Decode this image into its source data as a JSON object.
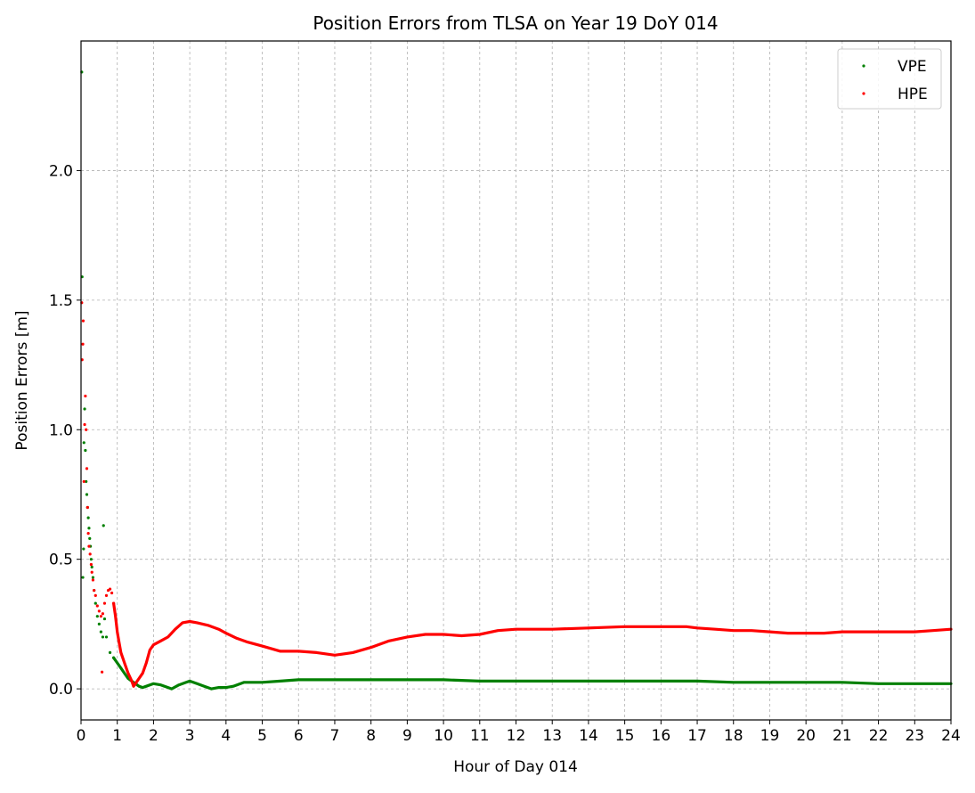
{
  "chart_data": {
    "type": "scatter",
    "title": "Position Errors from TLSA on Year 19 DoY 014",
    "xlabel": "Hour of Day 014",
    "ylabel": "Position Errors [m]",
    "xlim": [
      0,
      24
    ],
    "ylim": [
      -0.12,
      2.5
    ],
    "x_ticks": [
      0,
      1,
      2,
      3,
      4,
      5,
      6,
      7,
      8,
      9,
      10,
      11,
      12,
      13,
      14,
      15,
      16,
      17,
      18,
      19,
      20,
      21,
      22,
      23,
      24
    ],
    "x_tick_labels": [
      "0",
      "1",
      "2",
      "3",
      "4",
      "5",
      "6",
      "7",
      "8",
      "9",
      "10",
      "11",
      "12",
      "13",
      "14",
      "15",
      "16",
      "17",
      "18",
      "19",
      "20",
      "21",
      "22",
      "23",
      "24"
    ],
    "y_ticks": [
      0.0,
      0.5,
      1.0,
      1.5,
      2.0
    ],
    "y_tick_labels": [
      "0.0",
      "0.5",
      "1.0",
      "1.5",
      "2.0"
    ],
    "grid": true,
    "legend_position": "top-right",
    "series": [
      {
        "name": "VPE",
        "color": "#008000",
        "x": [
          0.02,
          0.03,
          0.05,
          0.07,
          0.08,
          0.1,
          0.12,
          0.14,
          0.16,
          0.18,
          0.2,
          0.22,
          0.24,
          0.26,
          0.28,
          0.3,
          0.33,
          0.36,
          0.4,
          0.45,
          0.5,
          0.55,
          0.6,
          0.62,
          0.65,
          0.7,
          0.8,
          0.9,
          1.0,
          1.1,
          1.2,
          1.3,
          1.4,
          1.5,
          1.6,
          1.7,
          1.8,
          2.0,
          2.2,
          2.4,
          2.5,
          2.7,
          2.9,
          3.0,
          3.2,
          3.4,
          3.6,
          3.8,
          4.0,
          4.2,
          4.5,
          5.0,
          5.5,
          6.0,
          6.5,
          7.0,
          7.5,
          8.0,
          9.0,
          10.0,
          11.0,
          12.0,
          13.0,
          14.0,
          15.0,
          16.0,
          17.0,
          18.0,
          19.0,
          20.0,
          21.0,
          22.0,
          23.0,
          23.5,
          24.0
        ],
        "y": [
          2.38,
          1.59,
          0.43,
          0.54,
          0.95,
          1.08,
          0.92,
          0.8,
          0.75,
          0.7,
          0.66,
          0.62,
          0.58,
          0.55,
          0.5,
          0.47,
          0.43,
          0.38,
          0.33,
          0.28,
          0.25,
          0.22,
          0.2,
          0.63,
          0.27,
          0.2,
          0.14,
          0.12,
          0.1,
          0.08,
          0.06,
          0.04,
          0.03,
          0.02,
          0.01,
          0.005,
          0.01,
          0.02,
          0.015,
          0.005,
          0.0,
          0.015,
          0.025,
          0.03,
          0.02,
          0.01,
          0.0,
          0.005,
          0.005,
          0.01,
          0.025,
          0.025,
          0.03,
          0.035,
          0.035,
          0.035,
          0.035,
          0.035,
          0.035,
          0.035,
          0.03,
          0.03,
          0.03,
          0.03,
          0.03,
          0.03,
          0.03,
          0.025,
          0.025,
          0.025,
          0.025,
          0.02,
          0.02,
          0.02,
          0.02
        ]
      },
      {
        "name": "HPE",
        "color": "#ff0000",
        "x": [
          0.02,
          0.03,
          0.05,
          0.06,
          0.08,
          0.1,
          0.12,
          0.14,
          0.16,
          0.18,
          0.2,
          0.22,
          0.25,
          0.28,
          0.3,
          0.33,
          0.36,
          0.4,
          0.45,
          0.5,
          0.55,
          0.58,
          0.6,
          0.65,
          0.7,
          0.75,
          0.8,
          0.85,
          0.9,
          0.95,
          1.0,
          1.05,
          1.1,
          1.2,
          1.3,
          1.4,
          1.45,
          1.5,
          1.55,
          1.6,
          1.7,
          1.8,
          1.9,
          2.0,
          2.2,
          2.4,
          2.6,
          2.8,
          3.0,
          3.2,
          3.5,
          3.8,
          4.0,
          4.3,
          4.6,
          5.0,
          5.5,
          6.0,
          6.5,
          7.0,
          7.5,
          8.0,
          8.5,
          9.0,
          9.5,
          10.0,
          10.5,
          11.0,
          11.5,
          12.0,
          13.0,
          14.0,
          15.0,
          16.0,
          16.7,
          17.0,
          17.5,
          18.0,
          18.5,
          19.0,
          19.5,
          20.0,
          20.5,
          21.0,
          22.0,
          23.0,
          23.5,
          24.0
        ],
        "y": [
          1.49,
          1.27,
          1.33,
          1.42,
          0.8,
          1.02,
          1.13,
          1.0,
          0.85,
          0.7,
          0.6,
          0.55,
          0.52,
          0.48,
          0.45,
          0.42,
          0.38,
          0.36,
          0.32,
          0.3,
          0.28,
          0.065,
          0.29,
          0.33,
          0.36,
          0.38,
          0.385,
          0.37,
          0.33,
          0.28,
          0.22,
          0.18,
          0.14,
          0.1,
          0.06,
          0.03,
          0.01,
          0.02,
          0.03,
          0.04,
          0.06,
          0.1,
          0.15,
          0.17,
          0.185,
          0.2,
          0.23,
          0.255,
          0.26,
          0.255,
          0.245,
          0.23,
          0.215,
          0.195,
          0.18,
          0.165,
          0.145,
          0.145,
          0.14,
          0.13,
          0.14,
          0.16,
          0.185,
          0.2,
          0.21,
          0.21,
          0.205,
          0.21,
          0.225,
          0.23,
          0.23,
          0.235,
          0.24,
          0.24,
          0.24,
          0.235,
          0.23,
          0.225,
          0.225,
          0.22,
          0.215,
          0.215,
          0.215,
          0.22,
          0.22,
          0.22,
          0.225,
          0.23
        ]
      }
    ]
  }
}
